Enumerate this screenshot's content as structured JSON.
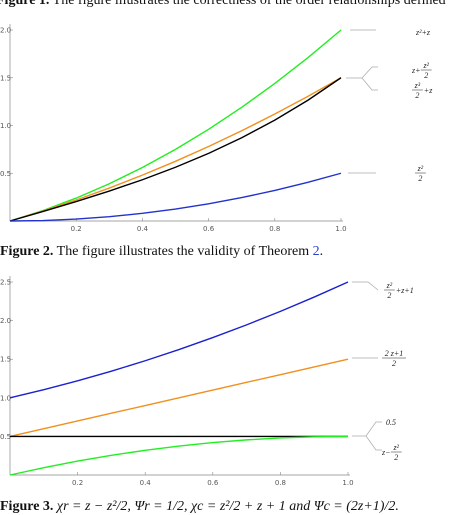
{
  "header": {
    "label": "Figure 1.",
    "text": "The figure illustrates the correctness of the order relationships defined"
  },
  "chart_data": [
    {
      "type": "line",
      "xlim": [
        0,
        1
      ],
      "ylim": [
        0,
        2
      ],
      "xticks": [
        0.2,
        0.4,
        0.6,
        0.8,
        {
          "value": 1,
          "label": "1.0"
        }
      ],
      "yticks": [
        0.5,
        {
          "value": 1,
          "label": "1.0"
        },
        1.5,
        {
          "value": 2,
          "label": "2.0"
        }
      ],
      "x": [
        0,
        0.1,
        0.2,
        0.3,
        0.4,
        0.5,
        0.6,
        0.7,
        0.8,
        0.9,
        1
      ],
      "series": [
        {
          "color": "#22ee22",
          "label": [
            "z²+z"
          ],
          "values": [
            0,
            0.11,
            0.24,
            0.39,
            0.56,
            0.75,
            0.96,
            1.19,
            1.44,
            1.71,
            2
          ]
        },
        {
          "color": "#f0901e",
          "label": [
            "z+",
            {
              "frac": [
                "z²",
                "2"
              ]
            }
          ],
          "values": [
            0,
            0.105,
            0.22,
            0.345,
            0.48,
            0.625,
            0.78,
            0.945,
            1.12,
            1.305,
            1.5
          ]
        },
        {
          "color": "#000000",
          "label": [
            {
              "frac": [
                "z³",
                "2"
              ]
            },
            "+z"
          ],
          "values": [
            0,
            0.1005,
            0.204,
            0.3135,
            0.432,
            0.5625,
            0.708,
            0.8715,
            1.056,
            1.2645,
            1.5
          ]
        },
        {
          "color": "#2233cc",
          "label": [
            {
              "frac": [
                "z²",
                "2"
              ]
            }
          ],
          "values": [
            0,
            0.005,
            0.02,
            0.045,
            0.08,
            0.125,
            0.18,
            0.245,
            0.32,
            0.405,
            0.5
          ]
        }
      ]
    },
    {
      "type": "line",
      "xlim": [
        0,
        1
      ],
      "ylim": [
        0,
        2.5
      ],
      "xticks": [
        0.2,
        0.4,
        0.6,
        0.8,
        {
          "value": 1,
          "label": "1.0"
        }
      ],
      "yticks": [
        0.5,
        {
          "value": 1,
          "label": "1.0"
        },
        1.5,
        {
          "value": 2,
          "label": "2.0"
        },
        2.5
      ],
      "x": [
        0,
        0.1,
        0.2,
        0.3,
        0.4,
        0.5,
        0.6,
        0.7,
        0.8,
        0.9,
        1
      ],
      "series": [
        {
          "color": "#1a22cc",
          "label": [
            {
              "frac": [
                "z²",
                "2"
              ]
            },
            "+z+1"
          ],
          "values": [
            1,
            1.105,
            1.22,
            1.345,
            1.48,
            1.625,
            1.78,
            1.945,
            2.12,
            2.305,
            2.5
          ]
        },
        {
          "color": "#f0901e",
          "label": [
            {
              "frac": [
                "2 z+1",
                "2"
              ]
            }
          ],
          "values": [
            0.5,
            0.6,
            0.7,
            0.8,
            0.9,
            1,
            1.1,
            1.2,
            1.3,
            1.4,
            1.5
          ]
        },
        {
          "color": "#000000",
          "label": [
            "0.5"
          ],
          "values": [
            0.5,
            0.5,
            0.5,
            0.5,
            0.5,
            0.5,
            0.5,
            0.5,
            0.5,
            0.5,
            0.5
          ]
        },
        {
          "color": "#22ee22",
          "label": [
            "z−",
            {
              "frac": [
                "z²",
                "2"
              ]
            }
          ],
          "values": [
            0,
            0.095,
            0.18,
            0.255,
            0.32,
            0.375,
            0.42,
            0.455,
            0.48,
            0.495,
            0.5
          ]
        }
      ]
    }
  ],
  "captions": [
    {
      "label": "Figure 2.",
      "text": "The figure illustrates the validity of Theorem",
      "ref": "2",
      "end": "."
    },
    {
      "label": "Figure 3.",
      "text": "χr = z − z²/2, Ψr = 1/2, χc = z²/2 + z + 1  and  Ψc = (2z+1)/2."
    }
  ]
}
